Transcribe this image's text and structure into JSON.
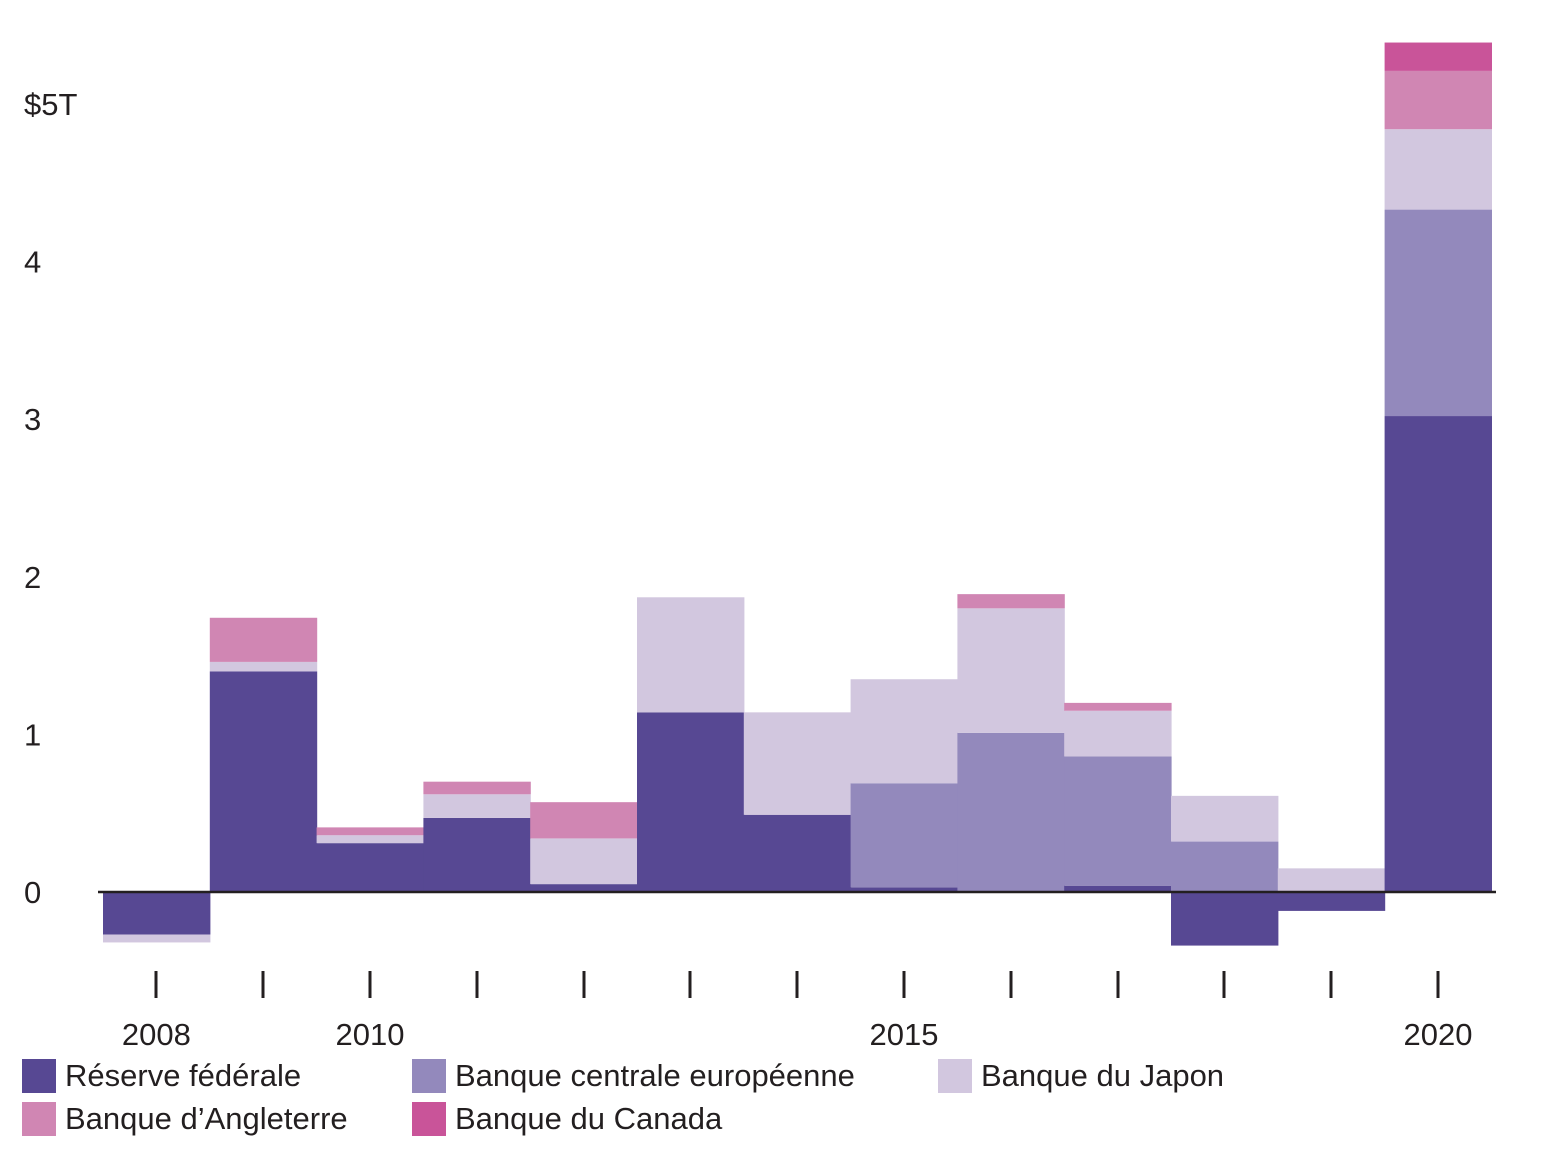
{
  "chart_data": {
    "type": "bar",
    "stacked": true,
    "title": "",
    "xlabel": "",
    "ylabel": "",
    "unit_prefix": "$",
    "unit_suffix": "T",
    "ylim": [
      -0.4,
      5.4
    ],
    "y_ticks": [
      {
        "value": 0,
        "label": "0"
      },
      {
        "value": 1,
        "label": "1"
      },
      {
        "value": 2,
        "label": "2"
      },
      {
        "value": 3,
        "label": "3"
      },
      {
        "value": 4,
        "label": "4"
      },
      {
        "value": 5,
        "label": "$5T"
      }
    ],
    "x": [
      2008,
      2009,
      2010,
      2011,
      2012,
      2013,
      2014,
      2015,
      2016,
      2017,
      2018,
      2019,
      2020
    ],
    "x_tick_labels": [
      {
        "year": 2008,
        "label": "2008"
      },
      {
        "year": 2010,
        "label": "2010"
      },
      {
        "year": 2015,
        "label": "2015"
      },
      {
        "year": 2020,
        "label": "2020"
      }
    ],
    "legend_position": "bottom",
    "series": [
      {
        "name": "Réserve fédérale",
        "color": "#574893",
        "values": [
          -0.27,
          1.4,
          0.31,
          0.47,
          0.05,
          1.14,
          0.49,
          0.03,
          0.0,
          0.04,
          -0.34,
          -0.12,
          3.02
        ]
      },
      {
        "name": "Banque centrale européenne",
        "color": "#9389bc",
        "values": [
          0.0,
          0.0,
          0.0,
          0.0,
          0.0,
          0.0,
          0.0,
          0.66,
          1.01,
          0.82,
          0.32,
          0.0,
          1.31
        ]
      },
      {
        "name": "Banque du Japon",
        "color": "#d2c7df",
        "values": [
          -0.05,
          0.06,
          0.05,
          0.15,
          0.29,
          0.73,
          0.65,
          0.66,
          0.79,
          0.29,
          0.29,
          0.15,
          0.51
        ]
      },
      {
        "name": "Banque d’Angleterre",
        "color": "#d086b3",
        "values": [
          0.0,
          0.28,
          0.05,
          0.08,
          0.23,
          0.0,
          0.0,
          0.0,
          0.09,
          0.05,
          0.0,
          0.0,
          0.37
        ]
      },
      {
        "name": "Banque du Canada",
        "color": "#c95499",
        "values": [
          0.0,
          0.0,
          0.0,
          0.0,
          0.0,
          0.0,
          0.0,
          0.0,
          0.0,
          0.0,
          0.0,
          0.0,
          0.18
        ]
      }
    ]
  }
}
